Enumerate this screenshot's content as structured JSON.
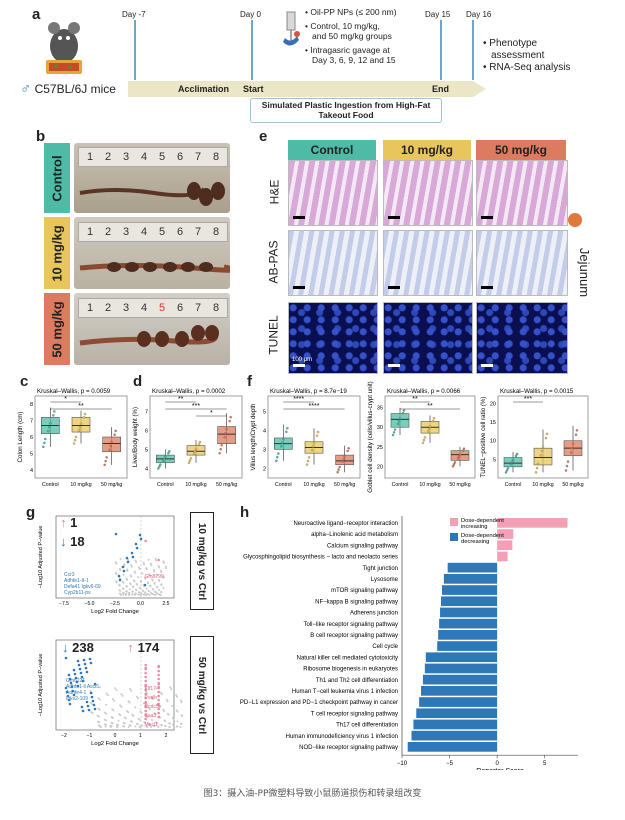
{
  "panel_letters": {
    "a": "a",
    "b": "b",
    "c": "c",
    "d": "d",
    "e": "e",
    "f": "f",
    "g": "g",
    "h": "h"
  },
  "timeline": {
    "days": [
      "Day -7",
      "Day 0",
      "Day 15",
      "Day 16"
    ],
    "phases": [
      "Acclimation",
      "Start",
      "End"
    ],
    "mice_label": "C57BL/6J mice",
    "male_symbol": "♂",
    "bullets_center": [
      "Oil-PP NPs (≤ 200 nm)",
      "Control, 10 mg/kg,",
      "and 50 mg/kg groups",
      "Intragasric gavage at",
      "Day 3, 6, 9, 12 and 15"
    ],
    "bullets_right": [
      "Phenotype",
      "assessment",
      "RNA-Seq analysis"
    ],
    "banner": [
      "Simulated Plastic Ingestion from High-Fat",
      "Takeout Food"
    ],
    "colors": {
      "arrow": "#ebe6c6",
      "marker": "#6aa7c9",
      "banner_border": "#9fc3d8"
    }
  },
  "groups": {
    "control": "Control",
    "low": "10 mg/kg",
    "high": "50 mg/kg",
    "colors": {
      "control": "#4dbba6",
      "low": "#e8c65c",
      "high": "#dc7b5f"
    }
  },
  "ruler_numbers": [
    "1",
    "2",
    "3",
    "4",
    "5",
    "6",
    "7",
    "8"
  ],
  "histology": {
    "stains": [
      "H&E",
      "AB-PAS",
      "TUNEL"
    ],
    "tissue": "Jejunum",
    "scale": "100 μm"
  },
  "boxplots": [
    {
      "panel": "c",
      "stat": "Kruskal–Wallis, p = 0.0059",
      "ylabel": "Colon Length (cm)",
      "sig": [
        "*",
        "**"
      ],
      "yticks": [
        "4",
        "5",
        "6",
        "7",
        "8"
      ],
      "ylim": [
        3.5,
        8.5
      ],
      "medians": [
        6.7,
        6.7,
        5.6
      ],
      "q1": [
        6.2,
        6.3,
        5.1
      ],
      "q3": [
        7.2,
        7.2,
        6.0
      ],
      "lo": [
        5.4,
        5.6,
        4.3
      ],
      "hi": [
        7.8,
        7.6,
        6.6
      ]
    },
    {
      "panel": "d",
      "stat": "Kruskal–Wallis, p = 0.0002",
      "ylabel": "Liver/Body weight (%)",
      "sig": [
        "**",
        "***",
        "*"
      ],
      "yticks": [
        "4",
        "5",
        "6",
        "7"
      ],
      "ylim": [
        3.5,
        7.8
      ],
      "medians": [
        4.5,
        4.9,
        5.8
      ],
      "q1": [
        4.3,
        4.7,
        5.3
      ],
      "q3": [
        4.7,
        5.2,
        6.2
      ],
      "lo": [
        4.0,
        4.3,
        4.8
      ],
      "hi": [
        5.0,
        5.5,
        6.9
      ]
    },
    {
      "panel": "f1",
      "stat": "Kruskal–Wallis, p = 8.7e−19",
      "ylabel": "Villus length/Crypt depth",
      "sig": [
        "****",
        "****"
      ],
      "yticks": [
        "2",
        "3",
        "4",
        "5"
      ],
      "ylim": [
        1.5,
        5.8
      ],
      "medians": [
        3.3,
        3.1,
        2.4
      ],
      "q1": [
        3.0,
        2.8,
        2.2
      ],
      "q3": [
        3.6,
        3.4,
        2.7
      ],
      "lo": [
        2.4,
        2.2,
        1.8
      ],
      "hi": [
        4.3,
        4.1,
        3.2
      ]
    },
    {
      "panel": "f2",
      "stat": "Kruskal–Wallis, p = 0.0066",
      "ylabel": "Goblet cell density (cells/villus-crypt unit)",
      "sig": [
        "**",
        "**"
      ],
      "yticks": [
        "20",
        "25",
        "30",
        "35"
      ],
      "ylim": [
        17,
        38
      ],
      "medians": [
        32,
        30,
        23
      ],
      "q1": [
        30,
        28.5,
        21.5
      ],
      "q3": [
        33.5,
        31.5,
        24
      ],
      "lo": [
        28,
        26,
        20
      ],
      "hi": [
        35,
        33,
        25
      ]
    },
    {
      "panel": "f3",
      "stat": "Kruskal–Wallis, p = 0.0015",
      "ylabel": "TUNEL−positive cell ratio (%)",
      "sig": [
        "***"
      ],
      "yticks": [
        "5",
        "10",
        "15",
        "20"
      ],
      "ylim": [
        0,
        22
      ],
      "medians": [
        4,
        5.5,
        8
      ],
      "q1": [
        3,
        3.5,
        6
      ],
      "q3": [
        5.5,
        8,
        10
      ],
      "lo": [
        1.5,
        1.5,
        2
      ],
      "hi": [
        7,
        13,
        14
      ]
    }
  ],
  "volcano": {
    "ylabel": "−Log10 Adjusted P−value",
    "xlabel": "Log2 Fold Change",
    "top": {
      "up": "1",
      "down": "18",
      "compare": "10 mg/kg vs Ctrl",
      "genes_left": [
        "Ccr3",
        "Adhfe1-II-1",
        "Defa41 Igkv6-69",
        "Cyp2b11-ps"
      ],
      "genes_right": [
        "Gm8799"
      ],
      "xticks": [
        "−7.5",
        "−5.0",
        "−2.5",
        "0.0",
        "2.5"
      ]
    },
    "bottom": {
      "up": "174",
      "down": "238",
      "compare": "50 mg/kg vs Ctrl",
      "genes_left": [
        "Gm6221",
        "Adhfe1-li Ascl5",
        "Adhfe4-1",
        "Igkv2-109"
      ],
      "genes_right": [
        "Klf17",
        "Pvalb",
        "Dcdc5e",
        "Saa3",
        "Mucl1"
      ],
      "xticks": [
        "−2",
        "−1",
        "0",
        "1",
        "2"
      ]
    }
  },
  "chart_data": {
    "type": "bar",
    "orientation": "horizontal",
    "title": "",
    "xlabel": "Reporter Score",
    "xticks": [
      "−10",
      "−5",
      "0",
      "5"
    ],
    "xlim": [
      -10,
      8.5
    ],
    "legend": [
      "Dose-dependent increasing",
      "Dose-dependent decreasing"
    ],
    "colors": {
      "increasing": "#f2a0b5",
      "decreasing": "#2f78b8"
    },
    "categories": [
      "Neuroactive ligand−receptor interaction",
      "alpha−Linolenic acid metabolism",
      "Calcium signaling pathway",
      "Glycosphingolipid biosynthesis − lacto and neolacto series",
      "Tight junction",
      "Lysosome",
      "mTOR signaling pathway",
      "NF−kappa B signaling pathway",
      "Adherens junction",
      "Toll−like receptor signaling pathway",
      "B cell receptor signaling pathway",
      "Cell cycle",
      "Natural killer cell mediated cytotoxicity",
      "Ribosome biogenesis in eukaryotes",
      "Th1 and Th2 cell differentiation",
      "Human T−cell leukemia virus 1 infection",
      "PD−L1 expression and PD−1 checkpoint pathway in cancer",
      "T cell receptor signaling pathway",
      "Th17 cell differentiation",
      "Human immunodeficiency virus 1 infection",
      "NOD−like receptor signaling pathway"
    ],
    "values": [
      7.4,
      1.7,
      1.6,
      1.1,
      -5.2,
      -5.6,
      -5.8,
      -5.9,
      -6.0,
      -6.1,
      -6.2,
      -6.3,
      -7.5,
      -7.6,
      -7.8,
      -8.0,
      -8.2,
      -8.5,
      -8.8,
      -9.0,
      -9.4
    ]
  },
  "caption": "图3：摄入油-PP微塑料导致小鼠肠道损伤和转录组改变"
}
